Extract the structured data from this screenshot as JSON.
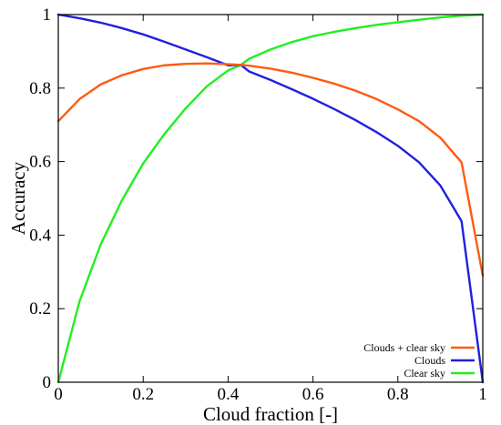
{
  "chart_data": {
    "type": "line",
    "xlabel": "Cloud fraction [-]",
    "ylabel": "Accuracy",
    "xlim": [
      0,
      1
    ],
    "ylim": [
      0,
      1
    ],
    "xticks": [
      "0",
      "0.2",
      "0.4",
      "0.6",
      "0.8",
      "1"
    ],
    "yticks": [
      "0",
      "0.2",
      "0.4",
      "0.6",
      "0.8",
      "1"
    ],
    "grid": false,
    "legend_position": "bottom-right",
    "x": [
      0,
      0.05,
      0.1,
      0.15,
      0.2,
      0.25,
      0.3,
      0.35,
      0.4,
      0.43,
      0.45,
      0.5,
      0.55,
      0.6,
      0.65,
      0.7,
      0.75,
      0.8,
      0.85,
      0.9,
      0.95,
      1.0
    ],
    "series": [
      {
        "name": "Clouds + clear sky",
        "color": "#ff5a10",
        "values": [
          0.71,
          0.77,
          0.81,
          0.835,
          0.852,
          0.862,
          0.866,
          0.867,
          0.865,
          0.863,
          0.861,
          0.853,
          0.842,
          0.828,
          0.812,
          0.793,
          0.77,
          0.742,
          0.71,
          0.665,
          0.598,
          0.29
        ]
      },
      {
        "name": "Clouds",
        "color": "#2020dd",
        "values": [
          1.0,
          0.99,
          0.978,
          0.963,
          0.946,
          0.926,
          0.905,
          0.884,
          0.862,
          0.863,
          0.845,
          0.822,
          0.797,
          0.771,
          0.743,
          0.713,
          0.68,
          0.643,
          0.598,
          0.535,
          0.438,
          0.0
        ]
      },
      {
        "name": "Clear sky",
        "color": "#22ee22",
        "values": [
          0.0,
          0.22,
          0.375,
          0.495,
          0.595,
          0.675,
          0.745,
          0.805,
          0.848,
          0.863,
          0.88,
          0.905,
          0.925,
          0.941,
          0.953,
          0.963,
          0.972,
          0.979,
          0.986,
          0.992,
          0.997,
          1.0
        ]
      }
    ]
  }
}
